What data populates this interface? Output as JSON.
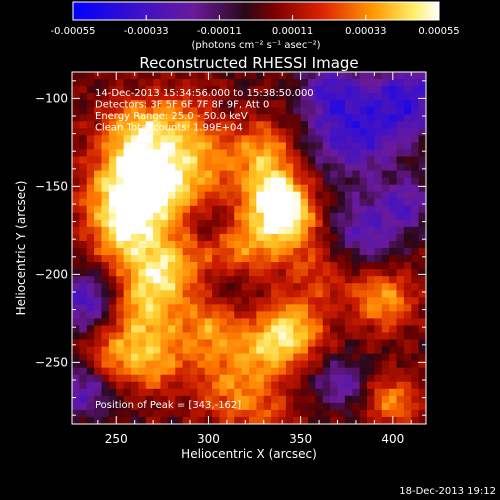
{
  "header": {
    "colorbar_tick_labels": [
      "-0.00055",
      "-0.00033",
      "-0.00011",
      "0.00011",
      "0.00033",
      "0.00055"
    ],
    "colorbar_unit": "(photons cm⁻² s⁻¹ asec⁻²)"
  },
  "footer": {
    "timestamp": "18-Dec-2013 19:12"
  },
  "chart_data": {
    "type": "heatmap",
    "title": "Reconstructed RHESSI Image",
    "xlabel": "Heliocentric X (arcsec)",
    "ylabel": "Heliocentric Y (arcsec)",
    "xlim": [
      226,
      418
    ],
    "ylim": [
      -285,
      -85
    ],
    "x_ticks": [
      250,
      300,
      350,
      400
    ],
    "y_ticks": [
      -100,
      -150,
      -200,
      -250
    ],
    "x_tick_labels": [
      "250",
      "300",
      "350",
      "400"
    ],
    "y_tick_labels": [
      "−100",
      "−150",
      "−200",
      "−250"
    ],
    "colorbar_range": [
      -0.00055,
      0.00055
    ],
    "annotations": [
      "14-Dec-2013 15:34:56.000 to 15:38:50.000",
      "Detectors: 3F 5F 6F 7F 8F 9F, Att 0",
      "Energy Range: 25.0 - 50.0 keV",
      "Clean     Total counts: 1.99E+04"
    ],
    "peak_label": "Position of Peak = [343,-162]",
    "peak_position": [
      343,
      -162
    ],
    "bright_regions": [
      {
        "x": 270,
        "y": -150,
        "level": 0.95
      },
      {
        "x": 262,
        "y": -120,
        "level": 0.85
      },
      {
        "x": 255,
        "y": -175,
        "level": 0.85
      },
      {
        "x": 270,
        "y": -200,
        "level": 0.9
      },
      {
        "x": 265,
        "y": -250,
        "level": 0.75
      },
      {
        "x": 335,
        "y": -150,
        "level": 0.95
      },
      {
        "x": 340,
        "y": -175,
        "level": 0.85
      },
      {
        "x": 345,
        "y": -232,
        "level": 0.9
      },
      {
        "x": 395,
        "y": -215,
        "level": 0.75
      },
      {
        "x": 300,
        "y": -235,
        "level": 0.7
      },
      {
        "x": 310,
        "y": -265,
        "level": 0.6
      },
      {
        "x": 400,
        "y": -270,
        "level": 0.6
      }
    ],
    "cool_regions": [
      {
        "x": 380,
        "y": -120,
        "level": -0.55
      },
      {
        "x": 410,
        "y": -100,
        "level": -0.5
      },
      {
        "x": 235,
        "y": -215,
        "level": -0.5
      },
      {
        "x": 240,
        "y": -265,
        "level": -0.4
      },
      {
        "x": 385,
        "y": -175,
        "level": -0.4
      },
      {
        "x": 370,
        "y": -260,
        "level": -0.35
      },
      {
        "x": 310,
        "y": -200,
        "level": -0.3
      }
    ]
  }
}
